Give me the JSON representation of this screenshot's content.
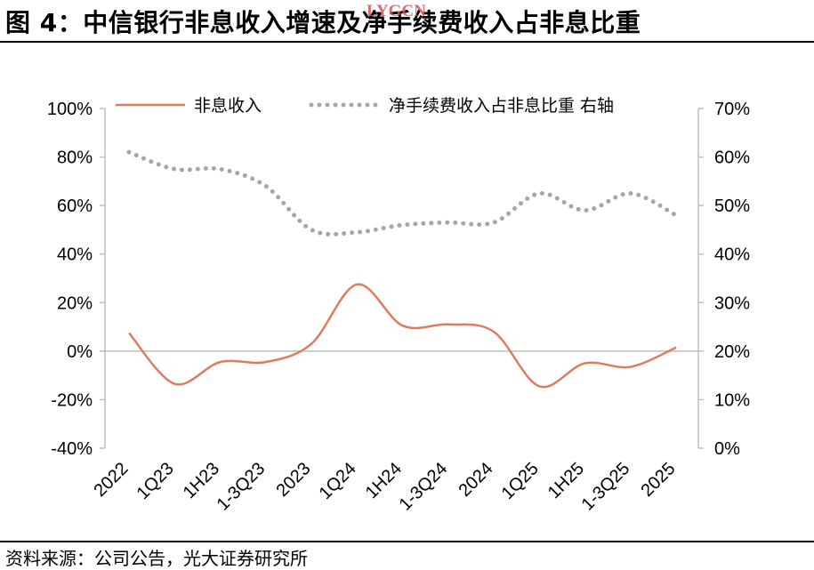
{
  "header": {
    "title": "图 4：中信银行非息收入增速及净手续费收入占非息比重",
    "watermark": "LYGCN"
  },
  "footer": {
    "source": "资料来源：公司公告，光大证券研究所"
  },
  "colors": {
    "series1": "#e07b5f",
    "series2": "#a6a6a6",
    "axis": "#bfbfbf"
  },
  "chart_data": {
    "type": "line",
    "categories": [
      "2022",
      "1Q23",
      "1H23",
      "1-3Q23",
      "2023",
      "1Q24",
      "1H24",
      "1-3Q24",
      "2024",
      "1Q25",
      "1H25",
      "1-3Q25",
      "2025"
    ],
    "series": [
      {
        "name": "非息收入",
        "axis": "left",
        "style": "solid",
        "values": [
          7.5,
          -13.5,
          -4.5,
          -4.5,
          3.0,
          27.5,
          10.5,
          11.0,
          8.0,
          -14.5,
          -5.0,
          -6.5,
          1.5
        ]
      },
      {
        "name": "净手续费收入占非息比重 右轴",
        "axis": "right",
        "style": "dotted",
        "values": [
          61,
          57.5,
          57.5,
          54,
          45,
          44.5,
          46,
          46.5,
          46.5,
          52.5,
          49,
          52.5,
          48
        ]
      }
    ],
    "y_left": {
      "min": -40,
      "max": 100,
      "step": 20,
      "ticks": [
        "100%",
        "80%",
        "60%",
        "40%",
        "20%",
        "0%",
        "-20%",
        "-40%"
      ]
    },
    "y_right": {
      "min": 0,
      "max": 70,
      "step": 10,
      "ticks": [
        "70%",
        "60%",
        "50%",
        "40%",
        "30%",
        "20%",
        "10%",
        "0%"
      ]
    },
    "legend": "top",
    "grid": false
  }
}
